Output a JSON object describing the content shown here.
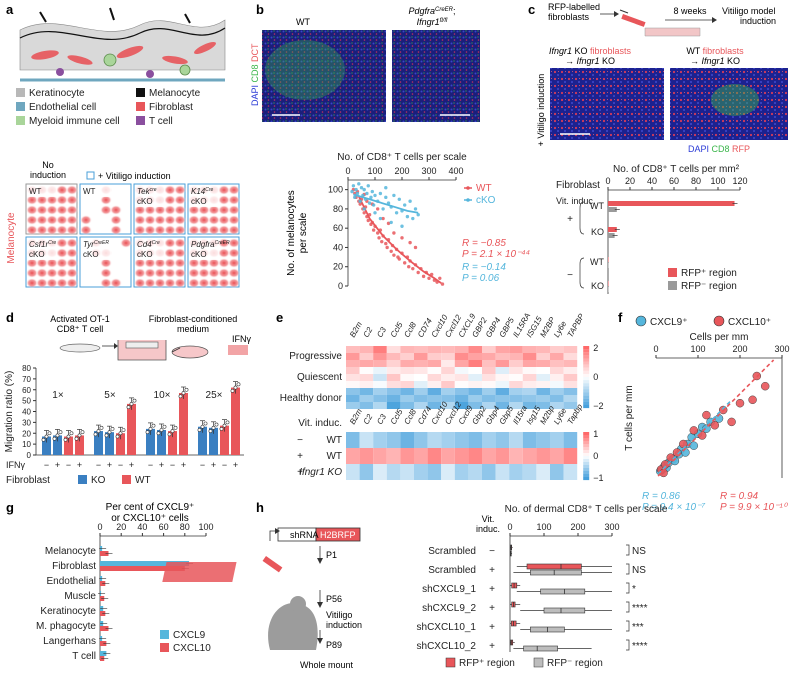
{
  "colors": {
    "red": "#e8565a",
    "blue": "#4a9fd8",
    "cyan": "#55b6dc",
    "grey": "#9a9a9a",
    "darkred": "#c0353a",
    "black": "#222222"
  },
  "a": {
    "letter": "a",
    "legend": [
      {
        "label": "Keratinocyte",
        "color": "#b8b8b8"
      },
      {
        "label": "Melanocyte",
        "color": "#111111"
      },
      {
        "label": "Endothelial cell",
        "color": "#6fa7bf"
      },
      {
        "label": "Fibroblast",
        "color": "#e8565a"
      },
      {
        "label": "Myeloid immune cell",
        "color": "#a9d59a"
      },
      {
        "label": "T cell",
        "color": "#8a4f9e"
      }
    ],
    "grid_label": "Melanocyte",
    "col_no_induction": "No induction",
    "col_vit": "+ Vitiligo induction",
    "tiles": [
      {
        "label": "WT"
      },
      {
        "label": "WT"
      },
      {
        "label": "Tek",
        "sup": "cre",
        "label2": "cKO"
      },
      {
        "label": "K14",
        "sup": "Cre",
        "label2": "cKO"
      },
      {
        "label": "Csf1r",
        "sup": "Cre",
        "label2": "cKO"
      },
      {
        "label": "Tyr",
        "sup": "CreER",
        "label2": "cKO"
      },
      {
        "label": "Cd4",
        "sup": "Cre",
        "label2": "cKO"
      },
      {
        "label": "Pdgfra",
        "sup": "CreER",
        "label2": "cKO"
      }
    ]
  },
  "b": {
    "letter": "b",
    "img_left": "WT",
    "img_right_1": "Pdgfra",
    "img_right_1_sup": "CreER",
    "img_right_2": "Ifngr1",
    "img_right_2_sup": "fl/fl",
    "stain": [
      {
        "t": "DAPI",
        "c": "#2b3bd6"
      },
      {
        "t": "CD8",
        "c": "#3ab54a"
      },
      {
        "t": "DCT",
        "c": "#e8565a"
      }
    ],
    "chart_data": {
      "type": "scatter",
      "title": "No. of CD8⁺ T cells per scale",
      "ylabel": "No. of melanocytes per scale",
      "xlim": [
        0,
        400
      ],
      "ylim": [
        0,
        110
      ],
      "xticks": [
        0,
        100,
        200,
        300,
        400
      ],
      "yticks": [
        0,
        20,
        40,
        60,
        80,
        100
      ],
      "series": [
        {
          "name": "WT",
          "color": "#e8565a",
          "fit": [
            [
              40,
              93
            ],
            [
              80,
              70
            ],
            [
              130,
              52
            ],
            [
              180,
              38
            ],
            [
              230,
              26
            ],
            [
              280,
              15
            ],
            [
              320,
              8
            ],
            [
              345,
              3
            ]
          ],
          "points": [
            [
              20,
              100
            ],
            [
              25,
              96
            ],
            [
              30,
              92
            ],
            [
              35,
              98
            ],
            [
              40,
              88
            ],
            [
              45,
              85
            ],
            [
              50,
              90
            ],
            [
              55,
              80
            ],
            [
              60,
              76
            ],
            [
              65,
              82
            ],
            [
              70,
              72
            ],
            [
              75,
              68
            ],
            [
              80,
              74
            ],
            [
              85,
              64
            ],
            [
              90,
              66
            ],
            [
              95,
              58
            ],
            [
              100,
              62
            ],
            [
              110,
              55
            ],
            [
              115,
              50
            ],
            [
              120,
              58
            ],
            [
              125,
              46
            ],
            [
              130,
              52
            ],
            [
              140,
              44
            ],
            [
              145,
              40
            ],
            [
              150,
              48
            ],
            [
              160,
              36
            ],
            [
              165,
              42
            ],
            [
              170,
              32
            ],
            [
              180,
              38
            ],
            [
              185,
              30
            ],
            [
              190,
              28
            ],
            [
              200,
              34
            ],
            [
              210,
              24
            ],
            [
              220,
              30
            ],
            [
              225,
              20
            ],
            [
              230,
              26
            ],
            [
              240,
              18
            ],
            [
              250,
              22
            ],
            [
              260,
              14
            ],
            [
              270,
              18
            ],
            [
              280,
              10
            ],
            [
              290,
              14
            ],
            [
              300,
              8
            ],
            [
              310,
              12
            ],
            [
              320,
              6
            ],
            [
              330,
              4
            ],
            [
              340,
              8
            ],
            [
              350,
              2
            ],
            [
              60,
              95
            ],
            [
              70,
              88
            ],
            [
              90,
              85
            ],
            [
              110,
              80
            ],
            [
              130,
              70
            ],
            [
              150,
              65
            ],
            [
              170,
              55
            ],
            [
              200,
              50
            ],
            [
              230,
              45
            ],
            [
              250,
              40
            ]
          ],
          "stats": [
            "R = −0.85",
            "P = 2.1 × 10⁻⁴⁴"
          ]
        },
        {
          "name": "cKO",
          "color": "#55b6dc",
          "fit": [
            [
              20,
              95
            ],
            [
              80,
              90
            ],
            [
              150,
              84
            ],
            [
              220,
              78
            ],
            [
              260,
              76
            ]
          ],
          "points": [
            [
              15,
              98
            ],
            [
              20,
              104
            ],
            [
              25,
              92
            ],
            [
              30,
              100
            ],
            [
              35,
              96
            ],
            [
              40,
              106
            ],
            [
              45,
              88
            ],
            [
              50,
              102
            ],
            [
              55,
              94
            ],
            [
              60,
              100
            ],
            [
              65,
              90
            ],
            [
              70,
              96
            ],
            [
              75,
              104
            ],
            [
              80,
              86
            ],
            [
              85,
              92
            ],
            [
              90,
              98
            ],
            [
              95,
              84
            ],
            [
              100,
              94
            ],
            [
              110,
              88
            ],
            [
              120,
              96
            ],
            [
              130,
              80
            ],
            [
              140,
              92
            ],
            [
              150,
              86
            ],
            [
              160,
              82
            ],
            [
              170,
              94
            ],
            [
              180,
              76
            ],
            [
              190,
              90
            ],
            [
              200,
              78
            ],
            [
              210,
              84
            ],
            [
              220,
              72
            ],
            [
              230,
              88
            ],
            [
              240,
              70
            ],
            [
              250,
              80
            ],
            [
              260,
              74
            ],
            [
              120,
              70
            ],
            [
              160,
              66
            ],
            [
              200,
              62
            ],
            [
              100,
              76
            ],
            [
              60,
              80
            ],
            [
              140,
              102
            ]
          ],
          "stats": [
            "R = −0.14",
            "P = 0.06"
          ]
        }
      ]
    }
  },
  "c": {
    "letter": "c",
    "flow": [
      "RFP-labelled fibroblasts",
      "8 weeks",
      "Vitiligo model induction"
    ],
    "img_left_title": [
      "Ifngr1 KO fibroblasts",
      "→ Ifngr1 KO"
    ],
    "img_right_title": [
      "WT fibroblasts",
      "→ Ifngr1 KO"
    ],
    "side_label": "+ Vitiligo induction",
    "stain": [
      {
        "t": "DAPI",
        "c": "#2b3bd6"
      },
      {
        "t": "CD8",
        "c": "#3ab54a"
      },
      {
        "t": "RFP",
        "c": "#e8565a"
      }
    ],
    "chart_data": {
      "type": "bar",
      "title": "No. of CD8⁺ T cells per mm²",
      "xlabel": "Fibroblast",
      "xlim": [
        0,
        120
      ],
      "xticks": [
        0,
        20,
        40,
        60,
        80,
        100,
        120
      ],
      "group_labels": [
        "Vit. induc.",
        "+",
        "−"
      ],
      "categories": [
        "WT",
        "KO",
        "WT",
        "KO"
      ],
      "series": [
        {
          "name": "RFP⁺ region",
          "color": "#e8565a",
          "values": [
            115,
            8,
            0,
            0
          ]
        },
        {
          "name": "RFP⁻ region",
          "color": "#9a9a9a",
          "values": [
            8,
            6,
            0,
            0
          ]
        }
      ],
      "legend": "bottom-right"
    }
  },
  "d": {
    "letter": "d",
    "title_left": [
      "Activated OT-1",
      "CD8⁺ T cell"
    ],
    "title_right": [
      "Fibroblast-conditioned",
      "medium"
    ],
    "ifng": "IFNγ",
    "chart_data": {
      "type": "bar",
      "ylabel": "Migration ratio (%)",
      "ylim": [
        0,
        80
      ],
      "yticks": [
        0,
        10,
        20,
        30,
        40,
        50,
        60,
        70,
        80
      ],
      "groups": [
        "1×",
        "5×",
        "10×",
        "25×"
      ],
      "ifng_labels": [
        "−",
        "+",
        "−",
        "+"
      ],
      "series": [
        {
          "name": "KO",
          "color": "#3a7fc1",
          "values": [
            [
              17,
              18
            ],
            [
              22,
              21
            ],
            [
              24,
              23
            ],
            [
              26,
              25
            ]
          ]
        },
        {
          "name": "WT",
          "color": "#e8565a",
          "values": [
            [
              17,
              18
            ],
            [
              20,
              47
            ],
            [
              22,
              57
            ],
            [
              27,
              62
            ]
          ]
        }
      ],
      "row_label_ifng": "IFNγ",
      "row_label_fib": "Fibroblast",
      "legend": [
        "KO",
        "WT"
      ]
    }
  },
  "e": {
    "letter": "e",
    "genes_top": [
      "B2m",
      "C2",
      "C3",
      "Ccl5",
      "Ccl8",
      "CD74",
      "Cxcl10",
      "Cxcl12",
      "CXCL9",
      "GBP2",
      "GBP4",
      "GBP5",
      "IL15RA",
      "ISG15",
      "M2BP",
      "Ly6e",
      "TAPBP"
    ],
    "rows_top": [
      "Progressive",
      "Quiescent",
      "Healthy donor"
    ],
    "genes_bottom": [
      "B2m",
      "C2",
      "C3",
      "Ccl5",
      "Ccl8",
      "Cd74",
      "Cxcl10",
      "Cxcl12",
      "Cxcl9",
      "Gbp2",
      "Gbp4",
      "Gbp5",
      "Il15ra",
      "Isg15",
      "M2bp",
      "Ly6e",
      "Tapbp"
    ],
    "vit_label": "Vit. induc.",
    "rows_bottom": [
      {
        "sign": "−",
        "label": "WT"
      },
      {
        "sign": "+",
        "label": "WT"
      },
      {
        "sign": "+",
        "label": "Ifngr1 KO"
      }
    ],
    "scale_top": [
      "2",
      "0",
      "−2"
    ],
    "scale_bottom": [
      "1",
      "0",
      "−1"
    ]
  },
  "f": {
    "letter": "f",
    "chart_data": {
      "type": "scatter",
      "title": "Cells per mm",
      "ylabel": "T cells per mm",
      "xlim": [
        0,
        300
      ],
      "xticks": [
        0,
        100,
        200,
        300
      ],
      "series": [
        {
          "name": "CXCL9⁺",
          "color": "#55b6dc",
          "stats": [
            "R = 0.86",
            "P = 9.4 × 10⁻⁷"
          ]
        },
        {
          "name": "CXCL10⁺",
          "color": "#e8565a",
          "stats": [
            "R = 0.94",
            "P = 9.9 × 10⁻¹⁰"
          ]
        }
      ]
    }
  },
  "g": {
    "letter": "g",
    "chart_data": {
      "type": "bar",
      "title": "Per cent of CXCL9⁺ or CXCL10⁺ cells",
      "xlim": [
        0,
        100
      ],
      "xticks": [
        0,
        20,
        40,
        60,
        80,
        100
      ],
      "categories": [
        "Melanocyte",
        "Fibroblast",
        "Endothelial",
        "Muscle",
        "Keratinocyte",
        "M. phagocyte",
        "Langerhans",
        "T cell"
      ],
      "series": [
        {
          "name": "CXCL9",
          "color": "#55b6dc",
          "values": [
            2,
            84,
            2,
            1,
            3,
            3,
            2,
            6
          ]
        },
        {
          "name": "CXCL10",
          "color": "#e8565a",
          "values": [
            8,
            80,
            5,
            4,
            5,
            8,
            6,
            4
          ]
        }
      ],
      "legend": "bottom-right"
    }
  },
  "h": {
    "letter": "h",
    "construct": [
      "shRNA",
      "H2BRFP"
    ],
    "timeline": [
      "P1",
      "P56",
      "Vitiligo induction",
      "P89",
      "Whole mount"
    ],
    "chart_data": {
      "type": "box",
      "title": "No. of dermal CD8⁺ T cells per scale",
      "xlim": [
        0,
        300
      ],
      "xticks": [
        0,
        100,
        200,
        300
      ],
      "row_header": "Vit. induc.",
      "rows": [
        {
          "label": "Scrambled",
          "vit": "−",
          "sig": "NS"
        },
        {
          "label": "Scrambled",
          "vit": "+",
          "sig": "NS"
        },
        {
          "label": "shCXCL9_1",
          "vit": "+",
          "sig": "*"
        },
        {
          "label": "shCXCL9_2",
          "vit": "+",
          "sig": "****"
        },
        {
          "label": "shCXCL10_1",
          "vit": "+",
          "sig": "***"
        },
        {
          "label": "shCXCL10_2",
          "vit": "+",
          "sig": "****"
        }
      ],
      "series": [
        {
          "name": "RFP⁺ region",
          "color": "#e8565a"
        },
        {
          "name": "RFP⁻ region",
          "color": "#bdbdbd"
        }
      ]
    }
  }
}
